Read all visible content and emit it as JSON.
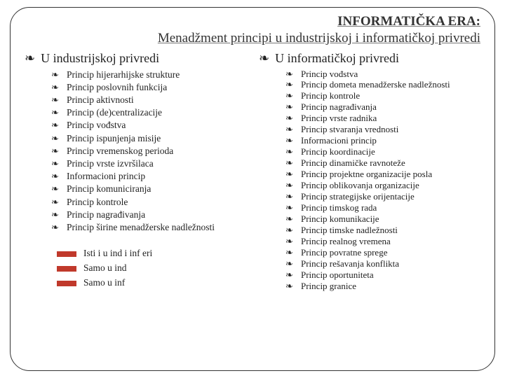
{
  "title_main": "INFORMATIČKA ERA:",
  "title_sub": "Menadžment principi u industrijskoj i informatičkoj privredi",
  "bullet_glyph": "❧",
  "left": {
    "heading": "U industrijskoj privredi",
    "items": [
      "Princip hijerarhijske strukture",
      "Princip poslovnih funkcija",
      "Princip aktivnosti",
      "Princip (de)centralizacije",
      "Princip vođstva",
      "Princip ispunjenja misije",
      "Princip vremenskog perioda",
      "Princip vrste izvršilaca",
      "Informacioni princip",
      "Princip komuniciranja",
      "Princip kontrole",
      "Princip nagrađivanja",
      "Princip širine menadžerske nadležnosti"
    ]
  },
  "right": {
    "heading": "U informatičkoj privredi",
    "items": [
      "Princip vođstva",
      "Princip dometa menadžerske nadležnosti",
      "Princip kontrole",
      "Princip nagrađivanja",
      "Princip vrste radnika",
      "Princip stvaranja vrednosti",
      "Informacioni  princip",
      "Princip koordinacije",
      "Princip dinamičke ravnoteže",
      "Princip projektne organizacije posla",
      "Princip oblikovanja organizacije",
      "Princip strategijske orijentacije",
      "Princip timskog rada",
      "Princip komunikacije",
      "Princip timske nadležnosti",
      "Princip realnog vremena",
      "Princip povratne sprege",
      "Princip rešavanja konflikta",
      "Princip oportuniteta",
      "Princip granice"
    ]
  },
  "legend": [
    {
      "color": "#c0392b",
      "label": "Isti i u ind i inf eri"
    },
    {
      "color": "#c0392b",
      "label": "Samo u ind"
    },
    {
      "color": "#c0392b",
      "label": "Samo u inf"
    }
  ]
}
